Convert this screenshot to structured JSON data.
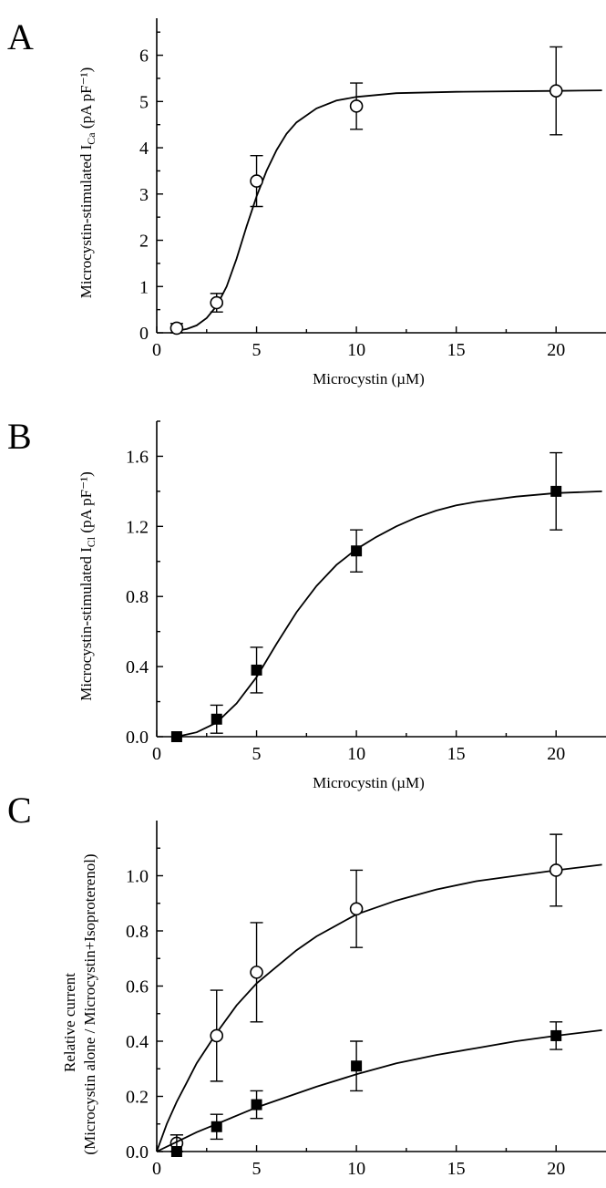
{
  "chart_data": [
    {
      "panel": "A",
      "type": "scatter",
      "xlabel": "Microcystin (µM)",
      "ylabel": "Microcystin-stimulated I_Ca (pA pF⁻¹)",
      "xlim": [
        0,
        22.5
      ],
      "ylim": [
        0,
        6.8
      ],
      "xticks": [
        0,
        5,
        10,
        15,
        20
      ],
      "yticks": [
        0,
        1,
        2,
        3,
        4,
        5,
        6
      ],
      "grid": false,
      "series": [
        {
          "marker": "open-circle",
          "x": [
            1,
            3,
            5,
            10,
            20
          ],
          "y": [
            0.1,
            0.65,
            3.28,
            4.9,
            5.23
          ],
          "err": [
            0.1,
            0.2,
            0.55,
            0.5,
            0.95
          ],
          "fit": [
            [
              0.8,
              0.03
            ],
            [
              1.5,
              0.08
            ],
            [
              2,
              0.16
            ],
            [
              2.5,
              0.32
            ],
            [
              3,
              0.58
            ],
            [
              3.5,
              1.0
            ],
            [
              4,
              1.6
            ],
            [
              4.5,
              2.3
            ],
            [
              5,
              2.95
            ],
            [
              5.5,
              3.5
            ],
            [
              6,
              3.95
            ],
            [
              6.5,
              4.3
            ],
            [
              7,
              4.55
            ],
            [
              8,
              4.85
            ],
            [
              9,
              5.02
            ],
            [
              10,
              5.1
            ],
            [
              12,
              5.18
            ],
            [
              15,
              5.21
            ],
            [
              20,
              5.23
            ],
            [
              22.3,
              5.24
            ]
          ]
        }
      ]
    },
    {
      "panel": "B",
      "type": "scatter",
      "xlabel": "Microcystin (µM)",
      "ylabel": "Microcystin-stimulated I_Cl (pA pF⁻¹)",
      "xlim": [
        0,
        22.5
      ],
      "ylim": [
        0,
        1.8
      ],
      "xticks": [
        0,
        5,
        10,
        15,
        20
      ],
      "yticks": [
        "0.0",
        "0.4",
        "0.8",
        "1.2",
        "1.6"
      ],
      "grid": false,
      "series": [
        {
          "marker": "filled-square",
          "x": [
            1,
            3,
            5,
            10,
            20
          ],
          "y": [
            0.0,
            0.1,
            0.38,
            1.06,
            1.4
          ],
          "err": [
            0.0,
            0.08,
            0.13,
            0.12,
            0.22
          ],
          "fit": [
            [
              1,
              0.0
            ],
            [
              2,
              0.025
            ],
            [
              3,
              0.08
            ],
            [
              4,
              0.19
            ],
            [
              5,
              0.34
            ],
            [
              6,
              0.53
            ],
            [
              7,
              0.71
            ],
            [
              8,
              0.86
            ],
            [
              9,
              0.98
            ],
            [
              10,
              1.07
            ],
            [
              11,
              1.14
            ],
            [
              12,
              1.2
            ],
            [
              13,
              1.25
            ],
            [
              14,
              1.29
            ],
            [
              15,
              1.32
            ],
            [
              16,
              1.34
            ],
            [
              18,
              1.37
            ],
            [
              20,
              1.39
            ],
            [
              22.3,
              1.4
            ]
          ]
        }
      ]
    },
    {
      "panel": "C",
      "type": "scatter",
      "xlabel": "Microcystin (µM)",
      "ylabel_line1": "Relative current",
      "ylabel_line2": "(Microcystin alone / Microcystin+Isoproterenol)",
      "xlim": [
        0,
        22.5
      ],
      "ylim": [
        0,
        1.2
      ],
      "xticks": [
        0,
        5,
        10,
        15,
        20
      ],
      "yticks": [
        "0.0",
        "0.2",
        "0.4",
        "0.6",
        "0.8",
        "1.0"
      ],
      "grid": false,
      "series": [
        {
          "marker": "open-circle",
          "x": [
            1,
            3,
            5,
            10,
            20
          ],
          "y": [
            0.03,
            0.42,
            0.65,
            0.88,
            1.02
          ],
          "err": [
            0.03,
            0.165,
            0.18,
            0.14,
            0.13
          ],
          "fit": [
            [
              0,
              0.0
            ],
            [
              0.5,
              0.1
            ],
            [
              1,
              0.18
            ],
            [
              1.5,
              0.25
            ],
            [
              2,
              0.32
            ],
            [
              3,
              0.43
            ],
            [
              4,
              0.53
            ],
            [
              5,
              0.61
            ],
            [
              6,
              0.67
            ],
            [
              7,
              0.73
            ],
            [
              8,
              0.78
            ],
            [
              10,
              0.86
            ],
            [
              12,
              0.91
            ],
            [
              14,
              0.95
            ],
            [
              16,
              0.98
            ],
            [
              18,
              1.0
            ],
            [
              20,
              1.02
            ],
            [
              22.3,
              1.04
            ]
          ]
        },
        {
          "marker": "filled-square",
          "x": [
            1,
            3,
            5,
            10,
            20
          ],
          "y": [
            0.0,
            0.09,
            0.17,
            0.31,
            0.42
          ],
          "err": [
            0.06,
            0.045,
            0.05,
            0.09,
            0.05
          ],
          "fit": [
            [
              0,
              0.0
            ],
            [
              1,
              0.035
            ],
            [
              2,
              0.07
            ],
            [
              3,
              0.1
            ],
            [
              4,
              0.13
            ],
            [
              5,
              0.16
            ],
            [
              6,
              0.185
            ],
            [
              8,
              0.235
            ],
            [
              10,
              0.28
            ],
            [
              12,
              0.32
            ],
            [
              14,
              0.35
            ],
            [
              16,
              0.375
            ],
            [
              18,
              0.4
            ],
            [
              20,
              0.42
            ],
            [
              22.3,
              0.44
            ]
          ]
        }
      ]
    }
  ]
}
